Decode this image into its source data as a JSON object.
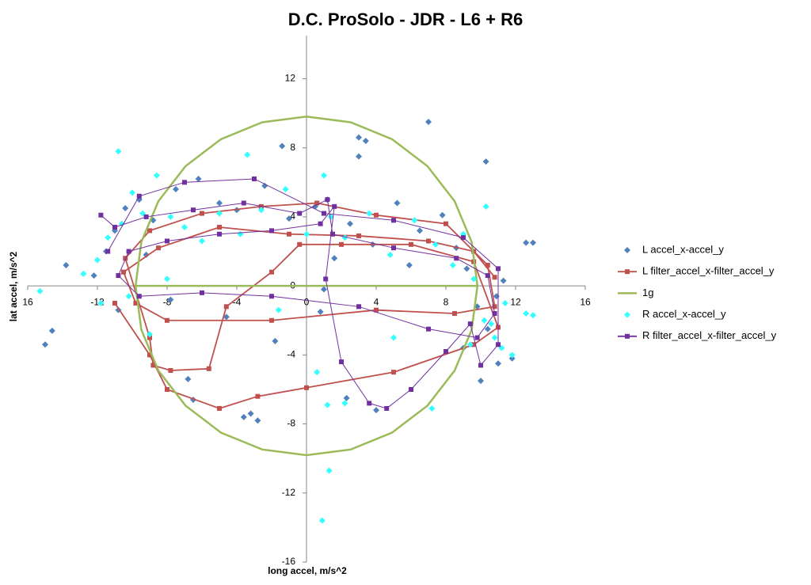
{
  "chart_data": {
    "type": "scatter",
    "title": "D.C. ProSolo - JDR - L6 + R6",
    "x_label": "long accel, m/s^2",
    "y_label": "lat accel, m/s^2",
    "xlim": [
      -16,
      16
    ],
    "ylim": [
      -16,
      14.5
    ],
    "xticks": [
      {
        "value": -16,
        "label": "16"
      },
      -12,
      -8,
      -4,
      0,
      4,
      8,
      12,
      16
    ],
    "yticks": [
      -16,
      -12,
      -8,
      -4,
      0,
      4,
      8,
      12
    ],
    "grid": false,
    "legend": "right",
    "series": [
      {
        "name": "L accel_x-accel_y",
        "color": "#4f81bd",
        "marker": "diamond",
        "line": false,
        "x": [
          7.0,
          -1.4,
          3.0,
          3.4,
          3.0,
          10.3,
          -15.0,
          -14.6,
          -13.8,
          12.6,
          13.0,
          -6.8,
          -6.5,
          -3.6,
          -3.2,
          -2.8,
          2.3,
          4.0,
          -11.5,
          -11.0,
          -10.4,
          -9.6,
          -8.8,
          -7.5,
          -6.2,
          -5.0,
          -4.0,
          -2.4,
          -1.0,
          0.5,
          1.2,
          1.6,
          2.5,
          3.8,
          5.2,
          6.5,
          7.8,
          8.6,
          9.2,
          9.8,
          10.4,
          10.9,
          11.3,
          11.8,
          -12.2,
          -10.8,
          -9.2,
          -7.8,
          -4.6,
          1.0,
          5.9,
          9.0,
          10.0,
          11.0,
          -1.8,
          0.8
        ],
        "values": [
          9.5,
          8.1,
          8.6,
          8.4,
          7.5,
          7.2,
          -3.4,
          -2.6,
          1.2,
          2.5,
          2.5,
          -5.4,
          -6.6,
          -7.6,
          -7.4,
          -7.8,
          -6.5,
          -7.2,
          2.0,
          3.2,
          4.5,
          5.0,
          3.8,
          5.6,
          6.2,
          4.8,
          4.4,
          5.8,
          3.9,
          4.6,
          5.0,
          1.6,
          3.6,
          2.4,
          4.8,
          3.2,
          4.1,
          2.2,
          1.0,
          -1.2,
          -2.5,
          -0.6,
          0.3,
          -4.2,
          0.6,
          -1.4,
          1.8,
          -0.8,
          -1.8,
          -0.2,
          1.2,
          -3.6,
          -5.5,
          -4.5,
          -3.2,
          -1.5
        ]
      },
      {
        "name": "L filter_accel_x-filter_accel_y",
        "color": "#c0504d",
        "marker": "square",
        "line": true,
        "x": [
          10.8,
          9.6,
          7,
          3,
          -1,
          -5,
          -8.5,
          -10.5,
          -9.8,
          -8,
          -2,
          4,
          8.5,
          10.8,
          10.4,
          8,
          4,
          0.6,
          -2.6,
          -6,
          -9,
          -10.4,
          -9.0,
          -8.8,
          -7.8,
          -5.6,
          -4.6,
          -2.0,
          -0.4,
          2,
          6,
          9.6,
          11,
          9.6,
          5,
          0,
          -2.8,
          -5,
          -8,
          -9,
          -11
        ],
        "values": [
          0.5,
          2.0,
          2.6,
          2.9,
          3.0,
          3.4,
          2.2,
          0.8,
          -1.0,
          -2.0,
          -2.0,
          -1.4,
          -1.6,
          -1.2,
          1.2,
          3.6,
          4.1,
          4.8,
          4.6,
          4.2,
          3.2,
          1.6,
          -3.0,
          -4.6,
          -4.9,
          -4.8,
          -1.2,
          0.8,
          2.4,
          2.4,
          2.4,
          1.4,
          -2.4,
          -3.4,
          -5.0,
          -5.9,
          -6.4,
          -7.1,
          -6.0,
          -4.0,
          -1.0
        ]
      },
      {
        "name": "1g",
        "color": "#9bbb59",
        "marker": "none",
        "line": true,
        "x": [
          9.81,
          9.48,
          8.5,
          6.94,
          4.91,
          2.54,
          0,
          -2.54,
          -4.91,
          -6.94,
          -8.5,
          -9.48,
          -9.81,
          -9.48,
          -8.5,
          -6.94,
          -4.91,
          -2.54,
          0,
          2.54,
          4.91,
          6.94,
          8.5,
          9.48,
          9.81,
          -9.81
        ],
        "values": [
          0,
          2.54,
          4.91,
          6.94,
          8.5,
          9.48,
          9.81,
          9.48,
          8.5,
          6.94,
          4.91,
          2.54,
          0,
          -2.54,
          -4.91,
          -6.94,
          -8.5,
          -9.48,
          -9.81,
          -9.48,
          -8.5,
          -6.94,
          -4.91,
          -2.54,
          0,
          0
        ]
      },
      {
        "name": "R accel_x-accel_y",
        "color": "#33ffff",
        "marker": "diamond",
        "line": false,
        "x": [
          -15.3,
          -12.8,
          -10.8,
          -3.4,
          1.3,
          0.9,
          12.6,
          13.0,
          10.3,
          7.2,
          1.2,
          2.2,
          -12.0,
          -11.4,
          -10.6,
          -10.0,
          -9.4,
          -8.6,
          -7.8,
          -7.0,
          -6.0,
          -5.0,
          -3.8,
          -2.6,
          -1.2,
          0.0,
          1.0,
          1.4,
          2.2,
          3.6,
          4.8,
          6.2,
          7.4,
          8.4,
          9.0,
          9.6,
          10.2,
          10.8,
          11.4,
          11.8,
          -11.8,
          -10.2,
          -9.0,
          -8.0,
          -1.6,
          0.6,
          5.0,
          9.4,
          10.6,
          11.2
        ],
        "values": [
          -0.3,
          0.7,
          7.8,
          7.6,
          -10.7,
          -13.6,
          -1.6,
          -1.7,
          4.6,
          -7.1,
          -6.9,
          -6.8,
          1.5,
          2.8,
          3.6,
          5.4,
          4.2,
          6.4,
          4.0,
          3.4,
          2.6,
          4.2,
          3.0,
          4.4,
          5.6,
          3.0,
          6.4,
          4.0,
          2.8,
          4.2,
          1.8,
          3.8,
          2.4,
          1.2,
          3.0,
          0.4,
          -2.0,
          -3.0,
          -1.0,
          -4.0,
          -1.0,
          -0.6,
          -2.8,
          0.4,
          -1.4,
          -5.0,
          -3.0,
          -3.4,
          -2.2,
          -3.6
        ]
      },
      {
        "name": "R filter_accel_x-filter_accel_y",
        "color": "#7030a0",
        "marker": "square",
        "line": true,
        "x": [
          -11.8,
          -11,
          -9.2,
          -6.5,
          -3.6,
          -0.4,
          1.2,
          1.5,
          5,
          8.6,
          10.4,
          10.8,
          9.8,
          7,
          3,
          -2,
          -6,
          -9.6,
          -10.8,
          -10.2,
          -8,
          -5,
          -2,
          0.8,
          1.6,
          1.1,
          2.0,
          3.6,
          4.6,
          6.0,
          8,
          9.4,
          10,
          11.0,
          11,
          9,
          5,
          1,
          -3,
          -7,
          -9.6,
          -11.4
        ],
        "values": [
          4.1,
          3.4,
          4.0,
          4.4,
          4.8,
          4.2,
          5.0,
          3.0,
          2.2,
          1.6,
          0.6,
          -1.6,
          -3.0,
          -2.5,
          -1.2,
          -0.6,
          -0.4,
          -0.6,
          0.6,
          2.0,
          2.6,
          3.0,
          3.2,
          3.6,
          4.6,
          0.4,
          -4.4,
          -6.8,
          -7.1,
          -6.0,
          -3.8,
          -2.2,
          -4.6,
          -3.4,
          1.0,
          2.8,
          3.8,
          4.2,
          6.2,
          6.0,
          5.2,
          2.0
        ]
      }
    ]
  }
}
